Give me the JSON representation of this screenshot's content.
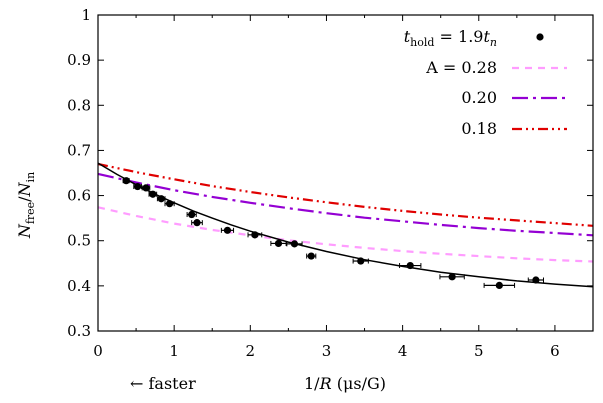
{
  "chart_data": {
    "type": "scatter",
    "title": "",
    "xlabel": "1/R (μs/G)",
    "xlabel_parts": {
      "pre": "1/",
      "var": "R",
      "post": " (μs/G)"
    },
    "ylabel": "N_free/N_in",
    "ylabel_parts": {
      "n1": "N",
      "s1": "free",
      "sep": "/",
      "n2": "N",
      "s2": "in"
    },
    "annotation": "← faster",
    "xlim": [
      0,
      6.5
    ],
    "ylim": [
      0.3,
      1.0
    ],
    "xticks": [
      0,
      1,
      2,
      3,
      4,
      5,
      6
    ],
    "yticks": [
      0.3,
      0.4,
      0.5,
      0.6,
      0.7,
      0.8,
      0.9,
      1.0
    ],
    "ytick_labels": [
      "0.3",
      "0.4",
      "0.5",
      "0.6",
      "0.7",
      "0.8",
      "0.9",
      "1"
    ],
    "grid": false,
    "legend_position": "top-right",
    "data_series": {
      "name": "t_hold = 1.9t_n",
      "name_parts": {
        "t": "t",
        "sub": "hold",
        "eq": " = 1.9",
        "tn": "t",
        "tnsub": "n"
      },
      "color": "#000000",
      "points": [
        {
          "x": 0.37,
          "y": 0.633,
          "xerr": 0.04
        },
        {
          "x": 0.52,
          "y": 0.62,
          "xerr": 0.05
        },
        {
          "x": 0.63,
          "y": 0.617,
          "xerr": 0.05
        },
        {
          "x": 0.72,
          "y": 0.603,
          "xerr": 0.05
        },
        {
          "x": 0.83,
          "y": 0.593,
          "xerr": 0.05
        },
        {
          "x": 0.94,
          "y": 0.582,
          "xerr": 0.06
        },
        {
          "x": 1.23,
          "y": 0.558,
          "xerr": 0.06
        },
        {
          "x": 1.3,
          "y": 0.54,
          "xerr": 0.07
        },
        {
          "x": 1.7,
          "y": 0.523,
          "xerr": 0.08
        },
        {
          "x": 2.06,
          "y": 0.513,
          "xerr": 0.09
        },
        {
          "x": 2.37,
          "y": 0.494,
          "xerr": 0.1
        },
        {
          "x": 2.58,
          "y": 0.493,
          "xerr": 0.1
        },
        {
          "x": 2.8,
          "y": 0.466,
          "xerr": 0.06
        },
        {
          "x": 3.45,
          "y": 0.455,
          "xerr": 0.1
        },
        {
          "x": 4.1,
          "y": 0.445,
          "xerr": 0.14
        },
        {
          "x": 4.65,
          "y": 0.42,
          "xerr": 0.16
        },
        {
          "x": 5.27,
          "y": 0.401,
          "xerr": 0.2
        },
        {
          "x": 5.75,
          "y": 0.413,
          "xerr": 0.1
        }
      ]
    },
    "fit_curve": {
      "color": "#000000",
      "style": "solid",
      "x": [
        0,
        0.25,
        0.5,
        0.75,
        1,
        1.25,
        1.5,
        1.75,
        2,
        2.5,
        3,
        3.5,
        4,
        4.5,
        5,
        5.5,
        6,
        6.5
      ],
      "y": [
        0.672,
        0.647,
        0.624,
        0.603,
        0.584,
        0.566,
        0.55,
        0.535,
        0.521,
        0.497,
        0.476,
        0.458,
        0.443,
        0.43,
        0.42,
        0.411,
        0.404,
        0.398
      ]
    },
    "series": [
      {
        "name": "A = 0.28",
        "color": "#ff9cff",
        "style": "dashed",
        "x": [
          0,
          0.5,
          1,
          1.5,
          2,
          2.5,
          3,
          3.5,
          4,
          4.5,
          5,
          5.5,
          6,
          6.5
        ],
        "y": [
          0.574,
          0.555,
          0.538,
          0.524,
          0.512,
          0.501,
          0.492,
          0.484,
          0.477,
          0.471,
          0.466,
          0.461,
          0.457,
          0.454
        ]
      },
      {
        "name": "0.20",
        "color": "#9400d3",
        "style": "long-dash-dot",
        "x": [
          0,
          0.5,
          1,
          1.5,
          2,
          2.5,
          3,
          3.5,
          4,
          4.5,
          5,
          5.5,
          6,
          6.5
        ],
        "y": [
          0.648,
          0.629,
          0.612,
          0.597,
          0.584,
          0.572,
          0.561,
          0.551,
          0.543,
          0.535,
          0.528,
          0.522,
          0.517,
          0.512
        ]
      },
      {
        "name": "0.18",
        "color": "#e00000",
        "style": "dash-dot-dot",
        "x": [
          0,
          0.5,
          1,
          1.5,
          2,
          2.5,
          3,
          3.5,
          4,
          4.5,
          5,
          5.5,
          6,
          6.5
        ],
        "y": [
          0.67,
          0.652,
          0.636,
          0.621,
          0.608,
          0.596,
          0.585,
          0.575,
          0.566,
          0.558,
          0.551,
          0.545,
          0.539,
          0.533
        ]
      }
    ]
  }
}
